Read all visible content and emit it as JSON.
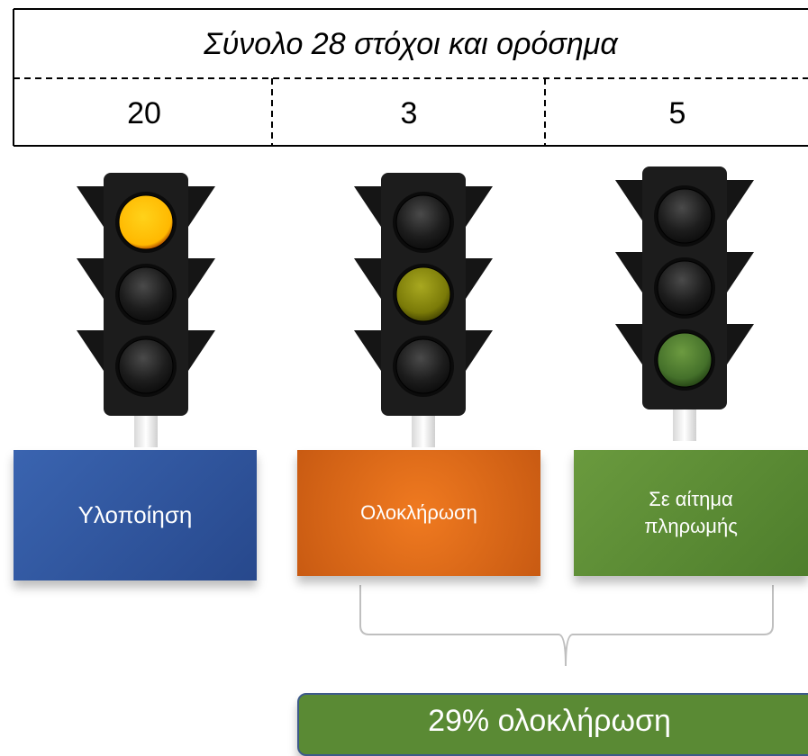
{
  "header": {
    "title": "Σύνολο 28 στόχοι και ορόσημα"
  },
  "counts": [
    20,
    3,
    5
  ],
  "stages": [
    {
      "label": "Υλοποίηση"
    },
    {
      "label": "Ολοκλήρωση"
    },
    {
      "label": "Σε αίτημα πληρωμής"
    }
  ],
  "summary": "29% ολοκλήρωση"
}
